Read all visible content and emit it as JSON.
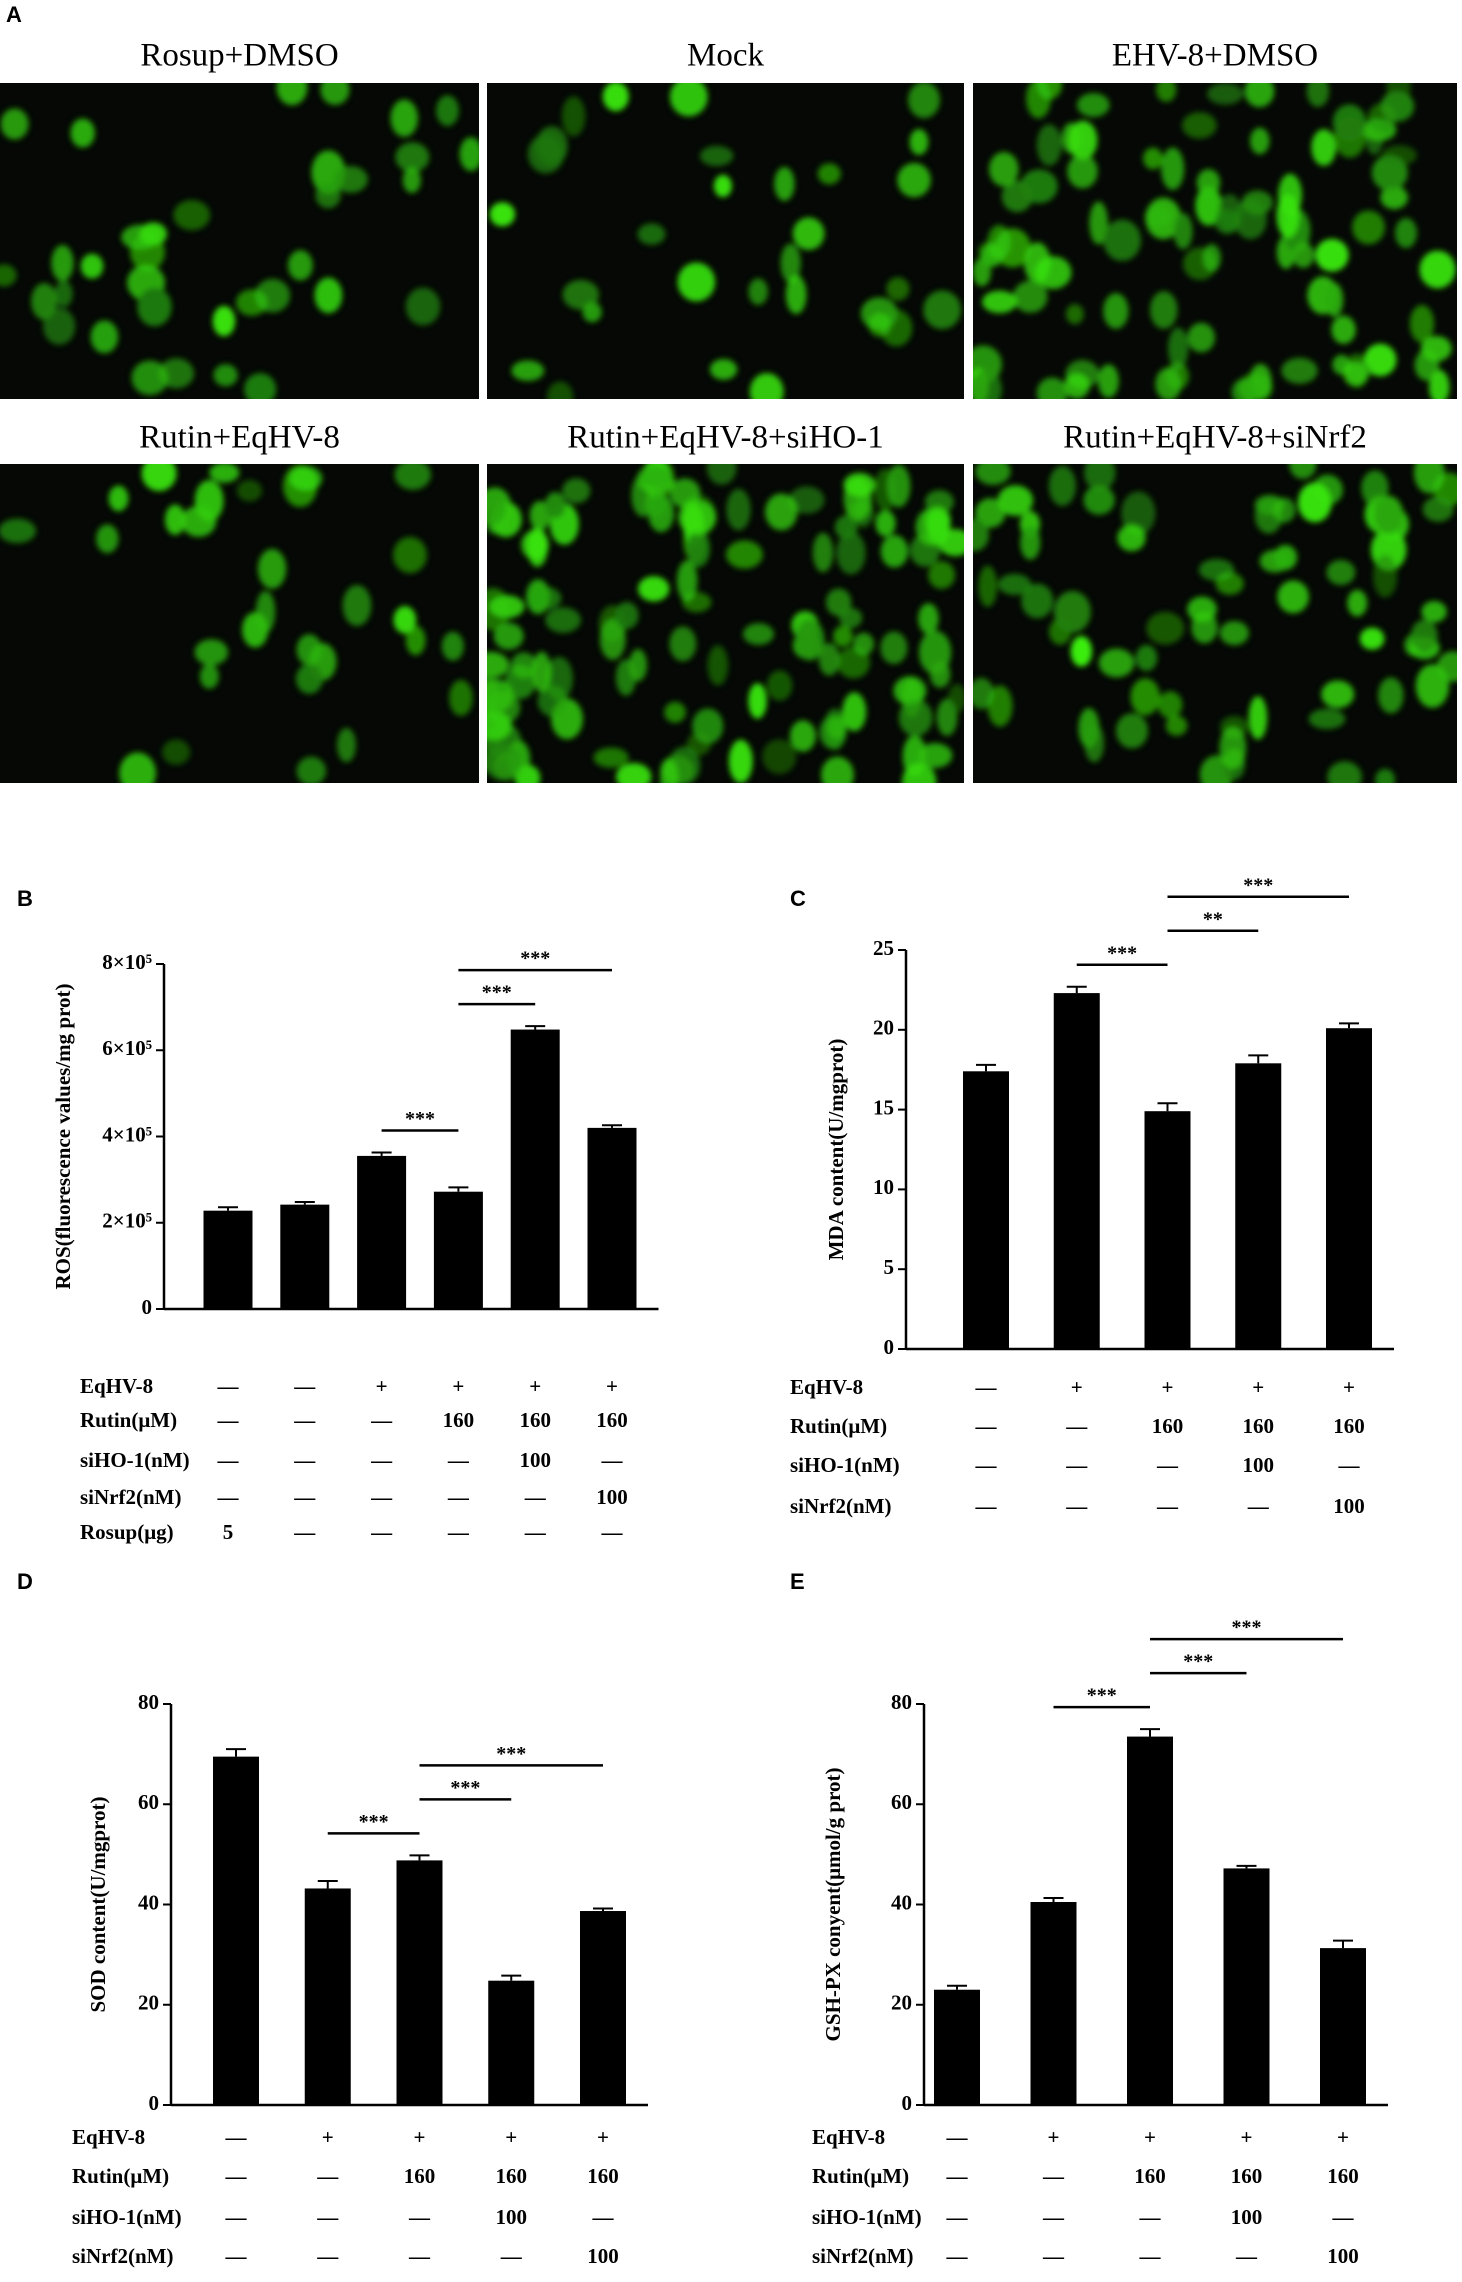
{
  "panel_a": {
    "panel": "A",
    "images": [
      {
        "title": "Rosup+DMSO"
      },
      {
        "title": "Mock"
      },
      {
        "title": "EHV-8+DMSO"
      },
      {
        "title": "Rutin+EqHV-8"
      },
      {
        "title": "Rutin+EqHV-8+siHO-1"
      },
      {
        "title": "Rutin+EqHV-8+siNrf2"
      }
    ]
  },
  "chart_data": [
    {
      "type": "bar",
      "panel": "B",
      "y_label": "ROS(fluorescence values/mg prot)",
      "color": "#000000",
      "categories": [
        null,
        null,
        null,
        null,
        null,
        null
      ],
      "values": [
        228000,
        242000,
        355000,
        272000,
        648000,
        420000
      ],
      "errors": [
        8000,
        6000,
        8000,
        10000,
        8000,
        6000
      ],
      "ylim": [
        0,
        800000
      ],
      "yticks": [
        0,
        {
          "value": 200000,
          "label": "2×10⁵"
        },
        {
          "value": 400000,
          "label": "4×10⁵"
        },
        {
          "value": 600000,
          "label": "6×10⁵"
        },
        {
          "value": 800000,
          "label": "8×10⁵"
        }
      ],
      "conditions": [
        {
          "label": "EqHV-8",
          "values": [
            "—",
            "—",
            "+",
            "+",
            "+",
            "+"
          ]
        },
        {
          "label": "Rutin(μM)",
          "values": [
            "—",
            "—",
            "—",
            "160",
            "160",
            "160"
          ]
        },
        {
          "label": "siHO-1(nM)",
          "values": [
            "—",
            "—",
            "—",
            "—",
            "100",
            "—"
          ]
        },
        {
          "label": "siNrf2(nM)",
          "values": [
            "—",
            "—",
            "—",
            "—",
            "—",
            "100"
          ]
        },
        {
          "label": "Rosup(μg)",
          "values": [
            "5",
            "—",
            "—",
            "—",
            "—",
            "—"
          ]
        }
      ],
      "significance": [
        {
          "from": 2,
          "to": 3,
          "label": "***"
        },
        {
          "from": 3,
          "to": 4,
          "label": "***"
        },
        {
          "from": 3,
          "to": 5,
          "label": "***"
        }
      ]
    },
    {
      "type": "bar",
      "panel": "C",
      "y_label": "MDA content(U/mgprot)",
      "color": "#000000",
      "categories": [
        null,
        null,
        null,
        null,
        null
      ],
      "values": [
        17.4,
        22.3,
        14.9,
        17.9,
        20.1
      ],
      "errors": [
        0.4,
        0.4,
        0.5,
        0.5,
        0.3
      ],
      "ylim": [
        0,
        25
      ],
      "yticks": [
        0,
        5,
        10,
        15,
        20,
        25
      ],
      "conditions": [
        {
          "label": "EqHV-8",
          "values": [
            "—",
            "+",
            "+",
            "+",
            "+"
          ]
        },
        {
          "label": "Rutin(μM)",
          "values": [
            "—",
            "—",
            "160",
            "160",
            "160"
          ]
        },
        {
          "label": "siHO-1(nM)",
          "values": [
            "—",
            "—",
            "—",
            "100",
            "—"
          ]
        },
        {
          "label": "siNrf2(nM)",
          "values": [
            "—",
            "—",
            "—",
            "—",
            "100"
          ]
        }
      ],
      "significance": [
        {
          "from": 1,
          "to": 2,
          "label": "***"
        },
        {
          "from": 2,
          "to": 3,
          "label": "**"
        },
        {
          "from": 2,
          "to": 4,
          "label": "***"
        }
      ]
    },
    {
      "type": "bar",
      "panel": "D",
      "y_label": "SOD content(U/mgprot)",
      "color": "#000000",
      "categories": [
        null,
        null,
        null,
        null,
        null
      ],
      "values": [
        69.5,
        43.2,
        48.8,
        24.8,
        38.7
      ],
      "errors": [
        1.5,
        1.5,
        1,
        1,
        0.5
      ],
      "ylim": [
        0,
        80
      ],
      "yticks": [
        0,
        20,
        40,
        60,
        80
      ],
      "conditions": [
        {
          "label": "EqHV-8",
          "values": [
            "—",
            "+",
            "+",
            "+",
            "+"
          ]
        },
        {
          "label": "Rutin(μM)",
          "values": [
            "—",
            "—",
            "160",
            "160",
            "160"
          ]
        },
        {
          "label": "siHO-1(nM)",
          "values": [
            "—",
            "—",
            "—",
            "100",
            "—"
          ]
        },
        {
          "label": "siNrf2(nM)",
          "values": [
            "—",
            "—",
            "—",
            "—",
            "100"
          ]
        }
      ],
      "significance": [
        {
          "from": 1,
          "to": 2,
          "label": "***"
        },
        {
          "from": 2,
          "to": 3,
          "label": "***"
        },
        {
          "from": 2,
          "to": 4,
          "label": "***"
        }
      ]
    },
    {
      "type": "bar",
      "panel": "E",
      "y_label": "GSH-PX conyent(μmol/g prot)",
      "color": "#000000",
      "categories": [
        null,
        null,
        null,
        null,
        null
      ],
      "values": [
        23,
        40.5,
        73.5,
        47.2,
        31.3
      ],
      "errors": [
        0.8,
        0.8,
        1.5,
        0.5,
        1.5
      ],
      "ylim": [
        0,
        80
      ],
      "yticks": [
        0,
        20,
        40,
        60,
        80
      ],
      "conditions": [
        {
          "label": "EqHV-8",
          "values": [
            "—",
            "+",
            "+",
            "+",
            "+"
          ]
        },
        {
          "label": "Rutin(μM)",
          "values": [
            "—",
            "—",
            "160",
            "160",
            "160"
          ]
        },
        {
          "label": "siHO-1(nM)",
          "values": [
            "—",
            "—",
            "—",
            "100",
            "—"
          ]
        },
        {
          "label": "siNrf2(nM)",
          "values": [
            "—",
            "—",
            "—",
            "—",
            "100"
          ]
        }
      ],
      "significance": [
        {
          "from": 1,
          "to": 2,
          "label": "***"
        },
        {
          "from": 2,
          "to": 3,
          "label": "***"
        },
        {
          "from": 2,
          "to": 4,
          "label": "***"
        }
      ]
    }
  ]
}
